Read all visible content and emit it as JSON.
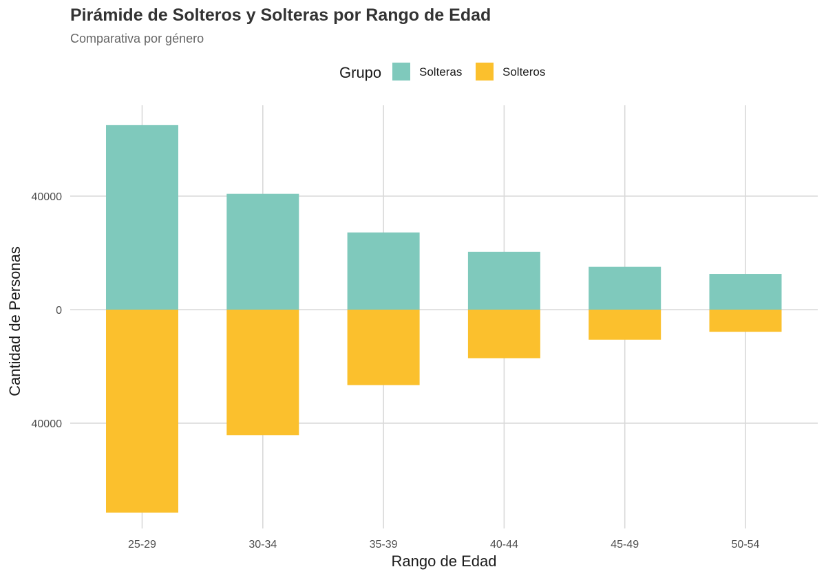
{
  "chart_data": {
    "type": "bar",
    "title": "Pirámide de Solteros y Solteras por Rango de Edad",
    "subtitle": "Comparativa por género",
    "xlabel": "Rango de Edad",
    "ylabel": "Cantidad de Personas",
    "legend": {
      "title": "Grupo",
      "placement": "top-center"
    },
    "categories": [
      "25-29",
      "30-34",
      "35-39",
      "40-44",
      "45-49",
      "50-54"
    ],
    "series": [
      {
        "name": "Solteras",
        "direction": "up",
        "color": "#7fc9bc",
        "values": [
          65000,
          40800,
          27200,
          20400,
          15100,
          12600
        ]
      },
      {
        "name": "Solteros",
        "direction": "down",
        "color": "#fbc02d",
        "values": [
          71500,
          44200,
          26600,
          17100,
          10600,
          7800
        ]
      }
    ],
    "ylim": [
      -72500,
      72500
    ],
    "yticks": [
      {
        "value": 40000,
        "label": "40000"
      },
      {
        "value": 0,
        "label": "0"
      },
      {
        "value": -40000,
        "label": "40000"
      }
    ],
    "grid": true
  }
}
